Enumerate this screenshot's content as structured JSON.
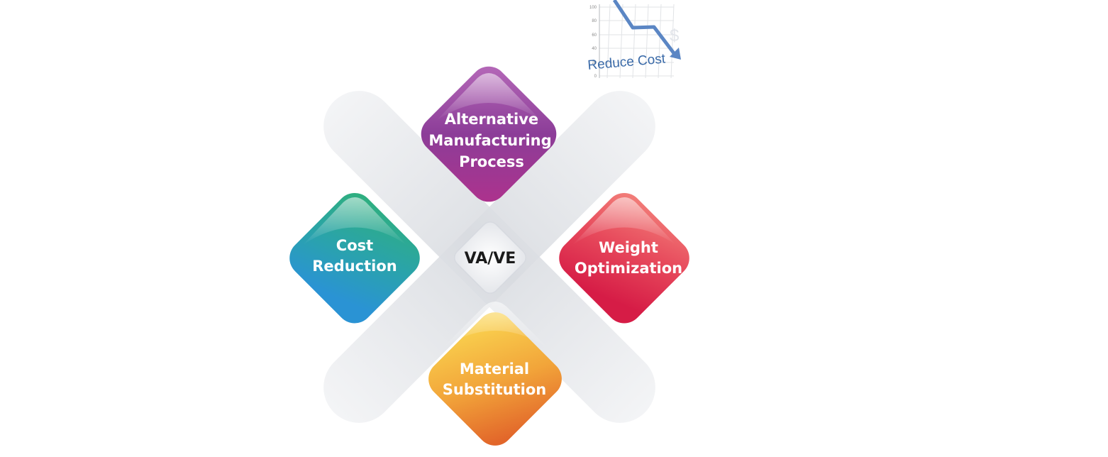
{
  "center": {
    "label": "VA/VE"
  },
  "diamonds": {
    "top": {
      "lines": [
        "Alternative",
        "Manufacturing",
        "Process"
      ]
    },
    "left": {
      "lines": [
        "Cost",
        "Reduction"
      ]
    },
    "right": {
      "lines": [
        "Weight",
        "Optimization"
      ]
    },
    "bottom": {
      "lines": [
        "Material",
        "Substitution"
      ]
    }
  },
  "inset_chart": {
    "label": "Reduce Cost",
    "y_ticks": [
      "100",
      "80",
      "60",
      "40",
      "20",
      "0"
    ],
    "currency_symbol": "$"
  },
  "colors": {
    "top": [
      "#b05fb3",
      "#8a3a95",
      "#a8308a"
    ],
    "left": [
      "#2fb07a",
      "#2a9eb0",
      "#2a8fd0"
    ],
    "right": [
      "#f07a74",
      "#e5465a",
      "#d81f48"
    ],
    "bottom": [
      "#f7c54a",
      "#f0a23a",
      "#e26a2a"
    ],
    "arrow": "#5b86c4"
  }
}
